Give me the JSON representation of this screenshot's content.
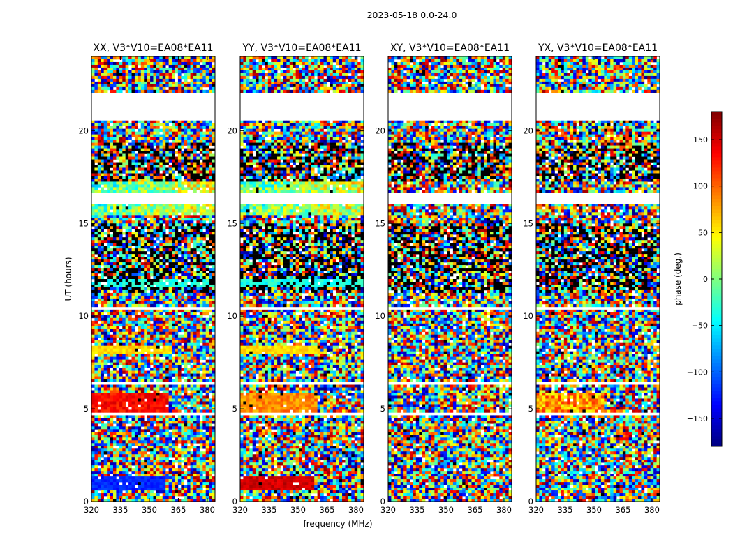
{
  "figure": {
    "suptitle": "2023-05-18 0.0-24.0"
  },
  "chart_data": {
    "type": "heatmap",
    "panels": [
      {
        "title": "XX, V3*V10=EA08*EA11",
        "pattern": "xx"
      },
      {
        "title": "YY, V3*V10=EA08*EA11",
        "pattern": "yy"
      },
      {
        "title": "XY, V3*V10=EA08*EA11",
        "pattern": "xy"
      },
      {
        "title": "YX, V3*V10=EA08*EA11",
        "pattern": "yx"
      }
    ],
    "xlabel": "frequency (MHz)",
    "ylabel": "UT (hours)",
    "xlim": [
      320,
      384
    ],
    "ylim": [
      0,
      24
    ],
    "xticks": [
      320,
      335,
      350,
      365,
      380
    ],
    "xtick_labels": [
      "320",
      "335",
      "350",
      "365",
      "380"
    ],
    "yticks": [
      0,
      5,
      10,
      15,
      20
    ],
    "ytick_labels": [
      "0",
      "5",
      "10",
      "15",
      "20"
    ],
    "colorbar": {
      "label": "phase (deg.)",
      "range": [
        -180,
        180
      ],
      "ticks": [
        -150,
        -100,
        -50,
        0,
        50,
        100,
        150
      ],
      "tick_labels": [
        "−150",
        "−100",
        "−50",
        "0",
        "50",
        "100",
        "150"
      ],
      "colormap": "jet"
    },
    "flagged_ut_ranges": [
      [
        20.6,
        22.1
      ],
      [
        16.1,
        16.6
      ],
      [
        10.3,
        10.5
      ],
      [
        4.6,
        4.75
      ],
      [
        6.3,
        6.4
      ]
    ],
    "dark_ut_ranges": [
      [
        17.3,
        19.3
      ],
      [
        11.2,
        15.0
      ]
    ]
  }
}
